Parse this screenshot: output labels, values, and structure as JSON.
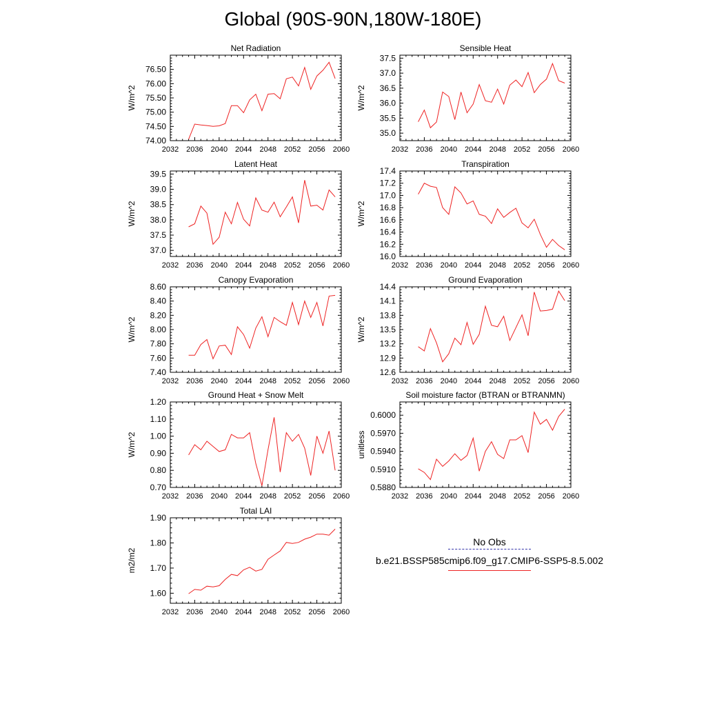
{
  "title": "Global (90S-90N,180W-180E)",
  "legend": {
    "obs_label": "No Obs",
    "obs_color": "#3333aa",
    "model_label": "b.e21.BSSP585cmip6.f09_g17.CMIP6-SSP5-8.5.002",
    "model_color": "#ee2222"
  },
  "chart_data": [
    {
      "type": "line",
      "title": "Net Radiation",
      "ylabel": "W/m^2",
      "xlim": [
        2032,
        2060
      ],
      "ylim": [
        74.0,
        77.0
      ],
      "xticks": [
        2032,
        2036,
        2040,
        2044,
        2048,
        2052,
        2056,
        2060
      ],
      "yticks": [
        "74.00",
        "74.50",
        "75.00",
        "75.50",
        "76.00",
        "76.50"
      ],
      "x": [
        2035,
        2036,
        2037,
        2038,
        2039,
        2040,
        2041,
        2042,
        2043,
        2044,
        2045,
        2046,
        2047,
        2048,
        2049,
        2050,
        2051,
        2052,
        2053,
        2054,
        2055,
        2056,
        2057,
        2058,
        2059
      ],
      "series": [
        {
          "values": [
            74.05,
            74.58,
            74.55,
            74.53,
            74.5,
            74.52,
            74.6,
            75.23,
            75.23,
            74.98,
            75.43,
            75.63,
            75.05,
            75.63,
            75.65,
            75.47,
            76.17,
            76.23,
            75.92,
            76.57,
            75.8,
            76.27,
            76.47,
            76.75,
            76.18
          ]
        }
      ]
    },
    {
      "type": "line",
      "title": "Sensible Heat",
      "ylabel": "W/m^2",
      "xlim": [
        2032,
        2060
      ],
      "ylim": [
        34.75,
        37.6
      ],
      "xticks": [
        2032,
        2036,
        2040,
        2044,
        2048,
        2052,
        2056,
        2060
      ],
      "yticks": [
        "35.0",
        "35.5",
        "36.0",
        "36.5",
        "37.0",
        "37.5"
      ],
      "x": [
        2035,
        2036,
        2037,
        2038,
        2039,
        2040,
        2041,
        2042,
        2043,
        2044,
        2045,
        2046,
        2047,
        2048,
        2049,
        2050,
        2051,
        2052,
        2053,
        2054,
        2055,
        2056,
        2057,
        2058,
        2059
      ],
      "series": [
        {
          "values": [
            35.38,
            35.77,
            35.18,
            35.37,
            36.37,
            36.22,
            35.45,
            36.37,
            35.68,
            35.97,
            36.62,
            36.08,
            36.03,
            36.47,
            35.97,
            36.6,
            36.77,
            36.55,
            37.02,
            36.35,
            36.62,
            36.8,
            37.32,
            36.75,
            36.67
          ]
        }
      ]
    },
    {
      "type": "line",
      "title": "Latent Heat",
      "ylabel": "W/m^2",
      "xlim": [
        2032,
        2060
      ],
      "ylim": [
        36.8,
        39.6
      ],
      "xticks": [
        2032,
        2036,
        2040,
        2044,
        2048,
        2052,
        2056,
        2060
      ],
      "yticks": [
        "37.0",
        "37.5",
        "38.0",
        "38.5",
        "39.0",
        "39.5"
      ],
      "x": [
        2035,
        2036,
        2037,
        2038,
        2039,
        2040,
        2041,
        2042,
        2043,
        2044,
        2045,
        2046,
        2047,
        2048,
        2049,
        2050,
        2051,
        2052,
        2053,
        2054,
        2055,
        2056,
        2057,
        2058,
        2059
      ],
      "series": [
        {
          "values": [
            37.77,
            37.87,
            38.45,
            38.22,
            37.2,
            37.43,
            38.25,
            37.87,
            38.57,
            38.02,
            37.8,
            38.72,
            38.32,
            38.25,
            38.58,
            38.1,
            38.42,
            38.75,
            37.9,
            39.3,
            38.45,
            38.48,
            38.32,
            38.98,
            38.75
          ]
        }
      ]
    },
    {
      "type": "line",
      "title": "Transpiration",
      "ylabel": "W/m^2",
      "xlim": [
        2032,
        2060
      ],
      "ylim": [
        16.0,
        17.4
      ],
      "xticks": [
        2032,
        2036,
        2040,
        2044,
        2048,
        2052,
        2056,
        2060
      ],
      "yticks": [
        "16.0",
        "16.2",
        "16.4",
        "16.6",
        "16.8",
        "17.0",
        "17.2",
        "17.4"
      ],
      "x": [
        2035,
        2036,
        2037,
        2038,
        2039,
        2040,
        2041,
        2042,
        2043,
        2044,
        2045,
        2046,
        2047,
        2048,
        2049,
        2050,
        2051,
        2052,
        2053,
        2054,
        2055,
        2056,
        2057,
        2058,
        2059
      ],
      "series": [
        {
          "values": [
            17.02,
            17.2,
            17.15,
            17.13,
            16.8,
            16.69,
            17.14,
            17.04,
            16.86,
            16.91,
            16.69,
            16.66,
            16.54,
            16.78,
            16.64,
            16.72,
            16.79,
            16.55,
            16.47,
            16.61,
            16.36,
            16.15,
            16.28,
            16.18,
            16.11
          ]
        }
      ]
    },
    {
      "type": "line",
      "title": "Canopy Evaporation",
      "ylabel": "W/m^2",
      "xlim": [
        2032,
        2060
      ],
      "ylim": [
        7.4,
        8.6
      ],
      "xticks": [
        2032,
        2036,
        2040,
        2044,
        2048,
        2052,
        2056,
        2060
      ],
      "yticks": [
        "7.40",
        "7.60",
        "7.80",
        "8.00",
        "8.20",
        "8.40",
        "8.60"
      ],
      "x": [
        2035,
        2036,
        2037,
        2038,
        2039,
        2040,
        2041,
        2042,
        2043,
        2044,
        2045,
        2046,
        2047,
        2048,
        2049,
        2050,
        2051,
        2052,
        2053,
        2054,
        2055,
        2056,
        2057,
        2058,
        2059
      ],
      "series": [
        {
          "values": [
            7.64,
            7.64,
            7.79,
            7.86,
            7.59,
            7.77,
            7.78,
            7.65,
            8.04,
            7.93,
            7.74,
            8.02,
            8.18,
            7.9,
            8.17,
            8.11,
            8.06,
            8.38,
            8.07,
            8.4,
            8.17,
            8.38,
            8.05,
            8.47,
            8.48
          ]
        }
      ]
    },
    {
      "type": "line",
      "title": "Ground Evaporation",
      "ylabel": "W/m^2",
      "xlim": [
        2032,
        2060
      ],
      "ylim": [
        12.6,
        14.4
      ],
      "xticks": [
        2032,
        2036,
        2040,
        2044,
        2048,
        2052,
        2056,
        2060
      ],
      "yticks": [
        "12.6",
        "12.9",
        "13.2",
        "13.5",
        "13.8",
        "14.1",
        "14.4"
      ],
      "x": [
        2035,
        2036,
        2037,
        2038,
        2039,
        2040,
        2041,
        2042,
        2043,
        2044,
        2045,
        2046,
        2047,
        2048,
        2049,
        2050,
        2051,
        2052,
        2053,
        2054,
        2055,
        2056,
        2057,
        2058,
        2059
      ],
      "series": [
        {
          "values": [
            13.14,
            13.05,
            13.52,
            13.22,
            12.82,
            12.99,
            13.32,
            13.18,
            13.65,
            13.19,
            13.4,
            13.99,
            13.59,
            13.56,
            13.78,
            13.27,
            13.54,
            13.81,
            13.37,
            14.29,
            13.89,
            13.9,
            13.93,
            14.31,
            14.11
          ]
        }
      ]
    },
    {
      "type": "line",
      "title": "Ground Heat + Snow Melt",
      "ylabel": "W/m^2",
      "xlim": [
        2032,
        2060
      ],
      "ylim": [
        0.7,
        1.2
      ],
      "xticks": [
        2032,
        2036,
        2040,
        2044,
        2048,
        2052,
        2056,
        2060
      ],
      "yticks": [
        "0.70",
        "0.80",
        "0.90",
        "1.00",
        "1.10",
        "1.20"
      ],
      "x": [
        2035,
        2036,
        2037,
        2038,
        2039,
        2040,
        2041,
        2042,
        2043,
        2044,
        2045,
        2046,
        2047,
        2048,
        2049,
        2050,
        2051,
        2052,
        2053,
        2054,
        2055,
        2056,
        2057,
        2058,
        2059
      ],
      "series": [
        {
          "values": [
            0.89,
            0.95,
            0.92,
            0.97,
            0.94,
            0.91,
            0.92,
            1.01,
            0.99,
            0.99,
            1.02,
            0.84,
            0.71,
            0.92,
            1.11,
            0.79,
            1.02,
            0.97,
            1.01,
            0.93,
            0.77,
            1.0,
            0.9,
            1.03,
            0.8
          ]
        }
      ]
    },
    {
      "type": "line",
      "title": "Soil moisture factor (BTRAN or BTRANMN)",
      "ylabel": "unitless",
      "xlim": [
        2032,
        2060
      ],
      "ylim": [
        0.588,
        0.6022
      ],
      "xticks": [
        2032,
        2036,
        2040,
        2044,
        2048,
        2052,
        2056,
        2060
      ],
      "yticks": [
        "0.5880",
        "0.5910",
        "0.5940",
        "0.5970",
        "0.6000"
      ],
      "x": [
        2035,
        2036,
        2037,
        2038,
        2039,
        2040,
        2041,
        2042,
        2043,
        2044,
        2045,
        2046,
        2047,
        2048,
        2049,
        2050,
        2051,
        2052,
        2053,
        2054,
        2055,
        2056,
        2057,
        2058,
        2059
      ],
      "series": [
        {
          "values": [
            0.5911,
            0.5905,
            0.5893,
            0.5927,
            0.5915,
            0.5924,
            0.5936,
            0.5925,
            0.5933,
            0.5962,
            0.5907,
            0.594,
            0.5956,
            0.5935,
            0.5928,
            0.5959,
            0.5959,
            0.5966,
            0.5938,
            0.6005,
            0.5985,
            0.5993,
            0.5975,
            0.5998,
            0.601
          ]
        }
      ]
    },
    {
      "type": "line",
      "title": "Total LAI",
      "ylabel": "m2/m2",
      "xlim": [
        2032,
        2060
      ],
      "ylim": [
        1.56,
        1.9
      ],
      "xticks": [
        2032,
        2036,
        2040,
        2044,
        2048,
        2052,
        2056,
        2060
      ],
      "yticks": [
        "1.60",
        "1.70",
        "1.80",
        "1.90"
      ],
      "x": [
        2035,
        2036,
        2037,
        2038,
        2039,
        2040,
        2041,
        2042,
        2043,
        2044,
        2045,
        2046,
        2047,
        2048,
        2049,
        2050,
        2051,
        2052,
        2053,
        2054,
        2055,
        2056,
        2057,
        2058,
        2059
      ],
      "series": [
        {
          "values": [
            1.598,
            1.615,
            1.612,
            1.628,
            1.625,
            1.63,
            1.655,
            1.675,
            1.67,
            1.693,
            1.703,
            1.688,
            1.695,
            1.735,
            1.752,
            1.768,
            1.802,
            1.798,
            1.802,
            1.815,
            1.823,
            1.835,
            1.835,
            1.831,
            1.855
          ]
        }
      ]
    }
  ]
}
